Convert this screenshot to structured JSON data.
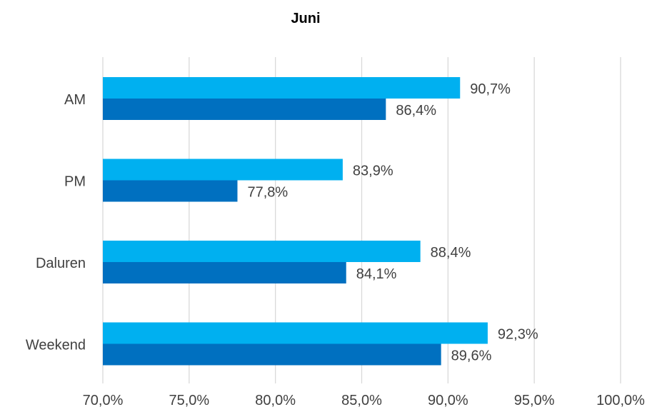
{
  "chart_data": {
    "type": "bar",
    "orientation": "horizontal",
    "title": "Juni",
    "xlabel": "",
    "ylabel": "",
    "categories": [
      "AM",
      "PM",
      "Daluren",
      "Weekend"
    ],
    "series": [
      {
        "values": [
          90.7,
          83.9,
          88.4,
          92.3
        ],
        "labels": [
          "90,7%",
          "83,9%",
          "88,4%",
          "92,3%"
        ],
        "color": "#00b0f0"
      },
      {
        "values": [
          86.4,
          77.8,
          84.1,
          89.6
        ],
        "labels": [
          "86,4%",
          "77,8%",
          "84,1%",
          "89,6%"
        ],
        "color": "#0070c0"
      }
    ],
    "xlim": [
      70,
      100
    ],
    "xticks": [
      70,
      75,
      80,
      85,
      90,
      95,
      100
    ],
    "xtick_labels": [
      "70,0%",
      "75,0%",
      "80,0%",
      "85,0%",
      "90,0%",
      "95,0%",
      "100,0%"
    ],
    "grid": true,
    "legend": "none"
  }
}
